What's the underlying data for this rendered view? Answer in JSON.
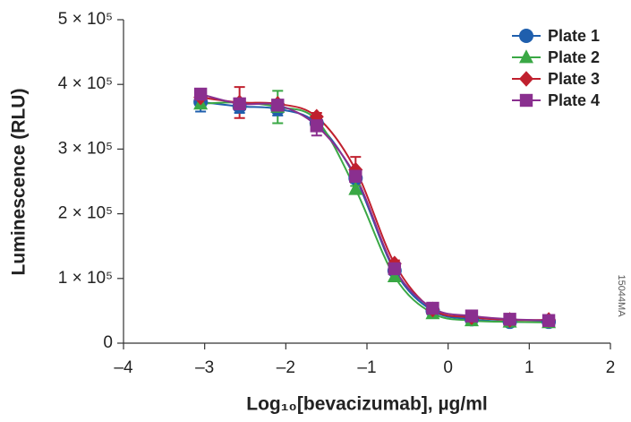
{
  "chart_data": {
    "type": "scatter",
    "x_label": "Log₁₀[bevacizumab], µg/ml",
    "y_label": "Luminescence (RLU)",
    "annotation": "15044MA",
    "xlim": [
      -4,
      2
    ],
    "ylim": [
      0,
      500000
    ],
    "xticks": [
      {
        "value": -4,
        "label": "–4"
      },
      {
        "value": -3,
        "label": "–3"
      },
      {
        "value": -2,
        "label": "–2"
      },
      {
        "value": -1,
        "label": "–1"
      },
      0,
      1,
      2
    ],
    "yticks": [
      0,
      {
        "value": 100000,
        "label": "1 × 10⁵"
      },
      {
        "value": 200000,
        "label": "2 × 10⁵"
      },
      {
        "value": 300000,
        "label": "3 × 10⁵"
      },
      {
        "value": 400000,
        "label": "4 × 10⁵"
      },
      {
        "value": 500000,
        "label": "5 × 10⁵"
      }
    ],
    "legend": "upper right",
    "grid": false,
    "x": [
      -3.05,
      -2.57,
      -2.1,
      -1.62,
      -1.14,
      -0.66,
      -0.19,
      0.29,
      0.76,
      1.24
    ],
    "series": [
      {
        "name": "Plate 1",
        "color": "#1f5fad",
        "marker": "circle",
        "values": [
          373000,
          366000,
          362000,
          340000,
          255000,
          112000,
          50000,
          37000,
          33000,
          33000
        ],
        "errors": [
          15000,
          10000,
          10000,
          8000,
          6000,
          5000,
          4000,
          3000,
          3000,
          3000
        ]
      },
      {
        "name": "Plate 2",
        "color": "#3aa845",
        "marker": "triangle",
        "values": [
          370000,
          372000,
          365000,
          345000,
          238000,
          103000,
          46000,
          35000,
          33000,
          32000
        ],
        "errors": [
          6000,
          6000,
          25000,
          6000,
          5000,
          5000,
          4000,
          3000,
          3000,
          3000
        ]
      },
      {
        "name": "Plate 3",
        "color": "#c0202e",
        "marker": "diamond",
        "values": [
          380000,
          372000,
          370000,
          350000,
          268000,
          123000,
          52000,
          40000,
          36000,
          36000
        ],
        "errors": [
          6000,
          24000,
          6000,
          6000,
          20000,
          5000,
          4000,
          3000,
          3000,
          3000
        ]
      },
      {
        "name": "Plate 4",
        "color": "#8a2f8f",
        "marker": "square",
        "values": [
          385000,
          370000,
          368000,
          336000,
          258000,
          115000,
          54000,
          42000,
          37000,
          35000
        ],
        "errors": [
          6000,
          8000,
          6000,
          15000,
          6000,
          5000,
          4000,
          3000,
          3000,
          3000
        ]
      }
    ]
  }
}
